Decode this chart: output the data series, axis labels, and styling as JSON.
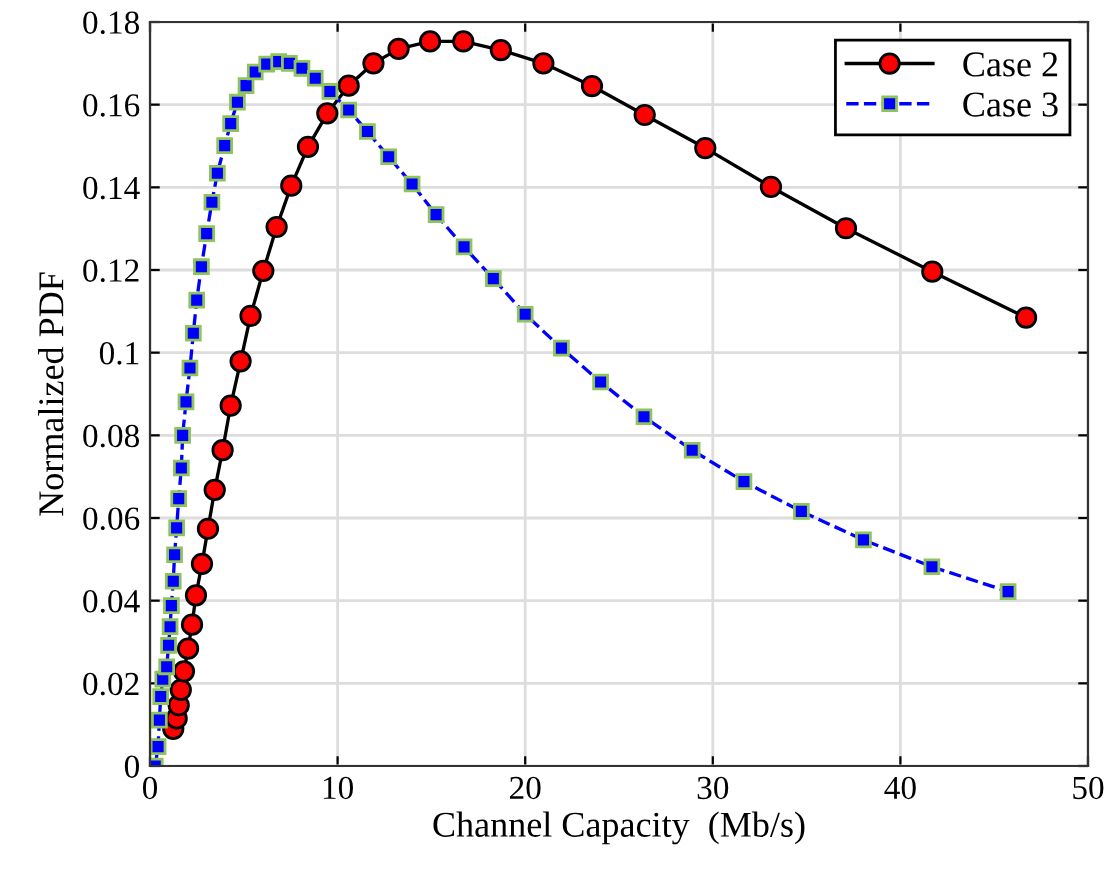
{
  "chart_data": {
    "type": "line",
    "xlabel": "Channel Capacity  (Mb/s)",
    "ylabel": "Normalized PDF",
    "xlim": [
      0,
      50
    ],
    "xticks": [
      0,
      10,
      20,
      30,
      40,
      50
    ],
    "ylim": [
      0,
      0.18
    ],
    "yticks": [
      0,
      0.02,
      0.04,
      0.06,
      0.08,
      0.1,
      0.12,
      0.14,
      0.16,
      0.18
    ],
    "grid": true,
    "legend": "top right",
    "series": [
      {
        "name": "Case 2",
        "color": "#ff0000",
        "marker": "circle",
        "line_style": "solid",
        "x": [
          1.24,
          1.42,
          1.53,
          1.64,
          1.81,
          2.03,
          2.24,
          2.45,
          2.77,
          3.09,
          3.45,
          3.87,
          4.3,
          4.83,
          5.36,
          6.04,
          6.75,
          7.53,
          8.42,
          9.45,
          10.59,
          11.91,
          13.25,
          14.93,
          16.7,
          18.7,
          20.97,
          23.56,
          26.37,
          29.6,
          33.1,
          37.1,
          41.7,
          46.7
        ],
        "values": [
          0.009,
          0.0115,
          0.0147,
          0.0184,
          0.0229,
          0.0284,
          0.0342,
          0.0413,
          0.0489,
          0.0574,
          0.0668,
          0.0764,
          0.0872,
          0.0979,
          0.1089,
          0.1198,
          0.1304,
          0.1404,
          0.1498,
          0.1579,
          0.1646,
          0.17,
          0.1735,
          0.1753,
          0.1753,
          0.1732,
          0.17,
          0.1645,
          0.1575,
          0.1495,
          0.1401,
          0.1301,
          0.1196,
          0.1085
        ]
      },
      {
        "name": "Case 3",
        "color": "#0000ff",
        "marker": "square",
        "line_style": "dashed",
        "x": [
          0.28,
          0.43,
          0.5,
          0.57,
          0.68,
          0.89,
          0.99,
          1.07,
          1.14,
          1.24,
          1.31,
          1.42,
          1.53,
          1.67,
          1.74,
          1.92,
          2.13,
          2.31,
          2.49,
          2.74,
          3.02,
          3.3,
          3.59,
          3.98,
          4.3,
          4.66,
          5.12,
          5.61,
          6.22,
          6.86,
          7.43,
          8.1,
          8.81,
          9.59,
          10.59,
          11.59,
          12.72,
          13.97,
          15.25,
          16.74,
          18.3,
          20.0,
          21.93,
          24.02,
          26.33,
          28.9,
          31.66,
          34.72,
          38.03,
          41.68,
          45.74
        ],
        "values": [
          0.0,
          0.0047,
          0.0111,
          0.0168,
          0.021,
          0.024,
          0.0292,
          0.0337,
          0.0388,
          0.0447,
          0.0511,
          0.0576,
          0.0647,
          0.0721,
          0.08,
          0.0881,
          0.0963,
          0.1047,
          0.1127,
          0.1208,
          0.1288,
          0.1364,
          0.1434,
          0.1501,
          0.1554,
          0.1606,
          0.1646,
          0.1679,
          0.1698,
          0.1704,
          0.17,
          0.1688,
          0.1664,
          0.1632,
          0.1587,
          0.1535,
          0.1474,
          0.1408,
          0.1334,
          0.1256,
          0.1179,
          0.1093,
          0.1011,
          0.0929,
          0.0845,
          0.0764,
          0.0688,
          0.0616,
          0.0547,
          0.0482,
          0.0422
        ]
      }
    ]
  }
}
